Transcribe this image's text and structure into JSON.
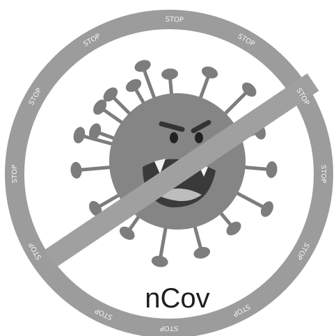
{
  "stop_labels": [
    "STOP",
    "STOP",
    "STOP",
    "STOP",
    "STOP",
    "STOP",
    "STOP",
    "STOP",
    "STOP",
    "STOP",
    "STOP",
    "STOP"
  ],
  "caption": "nCov"
}
